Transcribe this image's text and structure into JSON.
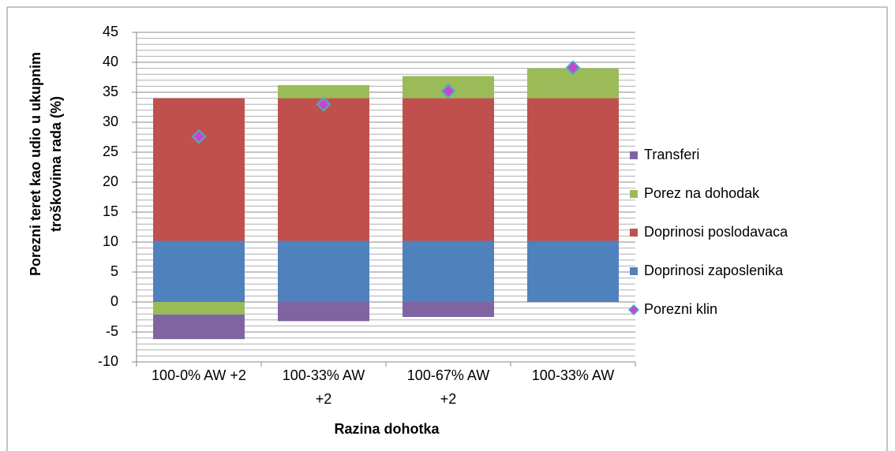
{
  "chart_data": {
    "type": "bar",
    "stacked": true,
    "x_label": "Razina dohotka",
    "y_label": "Porezni teret kao udio u ukupnim troškovima rada (%)",
    "categories": [
      "100-0% AW +2",
      "100-33% AW +2",
      "100-67% AW +2",
      "100-33% AW"
    ],
    "series": [
      {
        "name": "Transferi",
        "color": "#8064a2",
        "values": [
          -4.1,
          -3.2,
          -2.5,
          0
        ]
      },
      {
        "name": "Porez na dohodak",
        "color": "#9bbb59",
        "values": [
          -2.1,
          2.2,
          3.7,
          5.0
        ]
      },
      {
        "name": "Doprinosi poslodavaca",
        "color": "#c0504d",
        "values": [
          23.8,
          23.8,
          23.8,
          23.8
        ]
      },
      {
        "name": "Doprinosi zaposlenika",
        "color": "#4f81bd",
        "values": [
          10.2,
          10.2,
          10.2,
          10.2
        ]
      },
      {
        "name": "Porezni klin",
        "type": "scatter",
        "color": "#cc44cc",
        "edge_color": "#4bacc6",
        "values": [
          27.6,
          33.0,
          35.2,
          39.1
        ]
      }
    ],
    "ylim": [
      -10,
      45
    ],
    "yticks": [
      -10,
      -5,
      0,
      5,
      10,
      15,
      20,
      25,
      30,
      35,
      40,
      45
    ],
    "grid": true,
    "minor_grid_per_major": 5,
    "legend": "right"
  }
}
